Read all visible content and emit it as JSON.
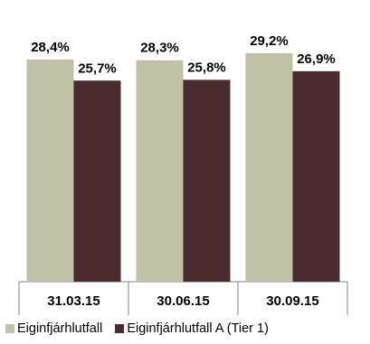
{
  "chart_data": {
    "type": "bar",
    "categories": [
      "31.03.15",
      "30.06.15",
      "30.09.15"
    ],
    "series": [
      {
        "name": "Eiginfjárhlutfall",
        "values": [
          28.4,
          28.3,
          29.2
        ],
        "labels": [
          "28,4%",
          "28,3%",
          "29,2%"
        ],
        "color": "#c0c0a6"
      },
      {
        "name": "Eiginfjárhlutfall A (Tier 1)",
        "values": [
          25.7,
          25.8,
          26.9
        ],
        "labels": [
          "25,7%",
          "25,8%",
          "26,9%"
        ],
        "color": "#4b2a30"
      }
    ],
    "ylim": [
      0,
      36
    ],
    "grid": false,
    "legend_position": "bottom-left",
    "axis_color": "#808080"
  }
}
